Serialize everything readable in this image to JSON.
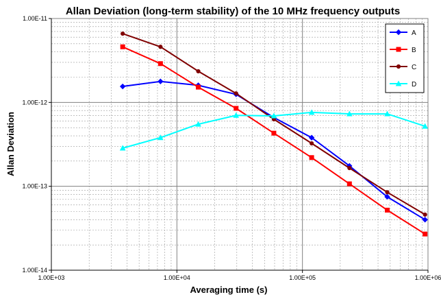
{
  "chart_data": {
    "type": "line",
    "title": "Allan Deviation (long-term stability) of the 10 MHz frequency outputs",
    "xlabel": "Averaging time (s)",
    "ylabel": "Allan Deviation",
    "xscale": "log",
    "yscale": "log",
    "xlim": [
      1000,
      1000000
    ],
    "ylim": [
      1e-14,
      1e-11
    ],
    "x_ticks": [
      "1.00E+03",
      "1.00E+04",
      "1.00E+05",
      "1.00E+06"
    ],
    "y_ticks": [
      "1.00E-11",
      "1.00E-12",
      "1.00E-13",
      "1.00E-14"
    ],
    "grid": true,
    "legend": "top-right",
    "x": [
      3700,
      7400,
      14800,
      29600,
      59200,
      118400,
      236800,
      473600,
      947200
    ],
    "series": [
      {
        "name": "A",
        "color": "#0000FF",
        "marker": "diamond",
        "values": [
          1.55e-12,
          1.78e-12,
          1.6e-12,
          1.25e-12,
          6.6e-13,
          3.8e-13,
          1.75e-13,
          7.5e-14,
          4e-14
        ]
      },
      {
        "name": "B",
        "color": "#FF0000",
        "marker": "square",
        "values": [
          4.6e-12,
          2.9e-12,
          1.52e-12,
          8.5e-13,
          4.3e-13,
          2.2e-13,
          1.07e-13,
          5.2e-14,
          2.7e-14
        ]
      },
      {
        "name": "C",
        "color": "#800000",
        "marker": "circle",
        "values": [
          6.6e-12,
          4.6e-12,
          2.35e-12,
          1.28e-12,
          6.3e-13,
          3.25e-13,
          1.65e-13,
          8.5e-14,
          4.6e-14
        ]
      },
      {
        "name": "D",
        "color": "#00FFFF",
        "marker": "triangle",
        "values": [
          2.85e-13,
          3.8e-13,
          5.5e-13,
          7e-13,
          6.9e-13,
          7.6e-13,
          7.3e-13,
          7.3e-13,
          5.2e-13
        ]
      }
    ]
  }
}
